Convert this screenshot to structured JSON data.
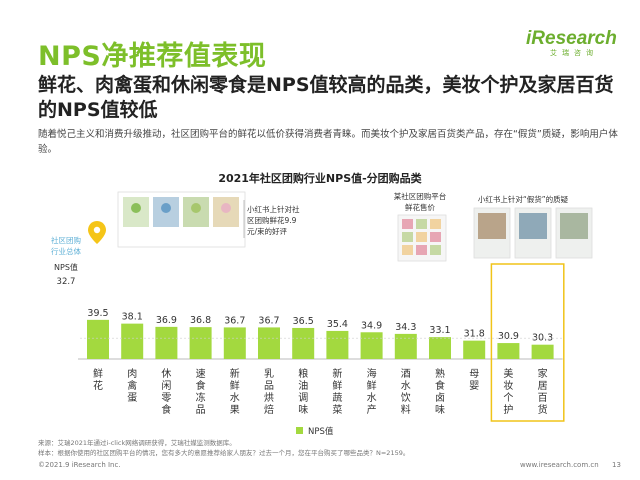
{
  "page": {
    "title": "NPS净推荐值表现",
    "headline": "鲜花、肉禽蛋和休闲零食是NPS值较高的品类，美妆个护及家居百货的NPS值较低",
    "description": "随着悦己主义和消费升级推动，社区团购平台的鲜花以低价获得消费者青睐。而美妆个护及家居百货类产品，存在“假货”质疑，影响用户体验。",
    "logo_text": "iResearch",
    "logo_sub": "艾瑞咨询",
    "source_line": "来源：艾瑞2021年通过i-click网络调研获得，艾瑞社媒监测数据库。",
    "sample_line": "样本：根据你使用的社区团购平台的情况，您有多大的意愿推荐给家人朋友？过去一个月，您在平台购买了哪些品类？N=2159。",
    "copyright": "©2021.9 iResearch Inc.",
    "website": "www.iresearch.com.cn",
    "page_number": "13"
  },
  "annotations": {
    "overall_label_1": "社区团购",
    "overall_label_2": "行业总体",
    "overall_label_3": "NPS值",
    "overall_value": "32.7",
    "flower_note_1": "小红书上针对社",
    "flower_note_2": "区团购鲜花9.9",
    "flower_note_3": "元/束的好评",
    "platform_note_1": "某社区团购平台",
    "platform_note_2": "鲜花售价",
    "fake_note": "小红书上针对“假货”的质疑"
  },
  "chart_data": {
    "type": "bar",
    "title": "2021年社区团购行业NPS值-分团购品类",
    "categories": [
      "鲜花",
      "肉禽蛋",
      "休闲零食",
      "速食冻品",
      "新鲜水果",
      "乳品烘焙",
      "粮油调味",
      "新鲜蔬菜",
      "海鲜水产",
      "酒水饮料",
      "熟食卤味",
      "母婴",
      "美妆个护",
      "家居百货"
    ],
    "series": [
      {
        "name": "NPS值",
        "values": [
          39.5,
          38.1,
          36.9,
          36.8,
          36.7,
          36.7,
          36.5,
          35.4,
          34.9,
          34.3,
          33.1,
          31.8,
          30.9,
          30.3
        ],
        "color": "#a3d93f"
      }
    ],
    "reference_line": {
      "value": 32.7
    },
    "highlighted_categories": [
      "美妆个护",
      "家居百货"
    ],
    "highlight_color": "#f0c419",
    "legend_position": "bottom"
  }
}
